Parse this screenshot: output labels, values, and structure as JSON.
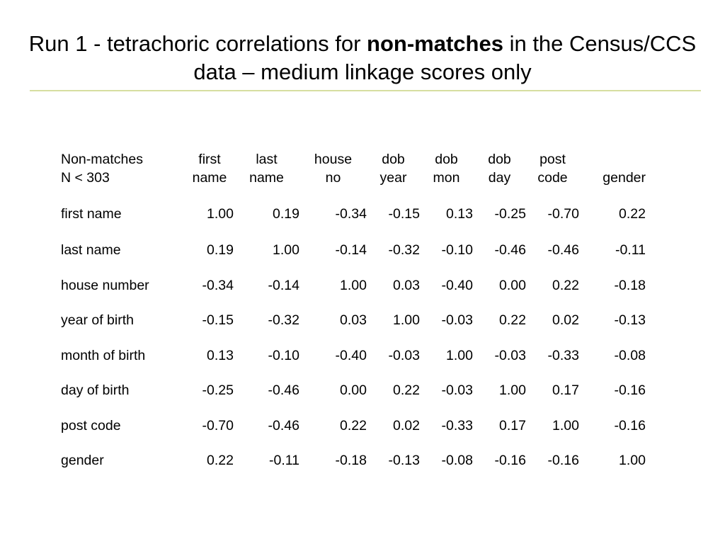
{
  "title": {
    "prefix": "Run 1 - tetrachoric correlations for ",
    "emphasis": "non-matches",
    "suffix": " in the Census/CCS data – medium linkage scores only"
  },
  "table": {
    "corner_line1": "Non-matches",
    "corner_line2": "N < 303",
    "header_line1": [
      "first",
      "last",
      "house",
      "dob",
      "dob",
      "dob",
      "post",
      ""
    ],
    "header_line2": [
      "name",
      "name",
      "no",
      "year",
      "mon",
      "day",
      "code",
      "gender"
    ],
    "rows": [
      {
        "label": "first name",
        "values": [
          "1.00",
          "0.19",
          "-0.34",
          "-0.15",
          "0.13",
          "-0.25",
          "-0.70",
          "0.22"
        ]
      },
      {
        "label": "last name",
        "values": [
          "0.19",
          "1.00",
          "-0.14",
          "-0.32",
          "-0.10",
          "-0.46",
          "-0.46",
          "-0.11"
        ]
      },
      {
        "label": "house number",
        "values": [
          "-0.34",
          "-0.14",
          "1.00",
          "0.03",
          "-0.40",
          "0.00",
          "0.22",
          "-0.18"
        ]
      },
      {
        "label": "year of birth",
        "values": [
          "-0.15",
          "-0.32",
          "0.03",
          "1.00",
          "-0.03",
          "0.22",
          "0.02",
          "-0.13"
        ]
      },
      {
        "label": "month of birth",
        "values": [
          "0.13",
          "-0.10",
          "-0.40",
          "-0.03",
          "1.00",
          "-0.03",
          "-0.33",
          "-0.08"
        ]
      },
      {
        "label": "day of birth",
        "values": [
          "-0.25",
          "-0.46",
          "0.00",
          "0.22",
          "-0.03",
          "1.00",
          "0.17",
          "-0.16"
        ]
      },
      {
        "label": "post code",
        "values": [
          "-0.70",
          "-0.46",
          "0.22",
          "0.02",
          "-0.33",
          "0.17",
          "1.00",
          "-0.16"
        ]
      },
      {
        "label": "gender",
        "values": [
          "0.22",
          "-0.11",
          "-0.18",
          "-0.13",
          "-0.08",
          "-0.16",
          "-0.16",
          "1.00"
        ]
      }
    ]
  },
  "colors": {
    "title_rule": "#d6dea0"
  }
}
